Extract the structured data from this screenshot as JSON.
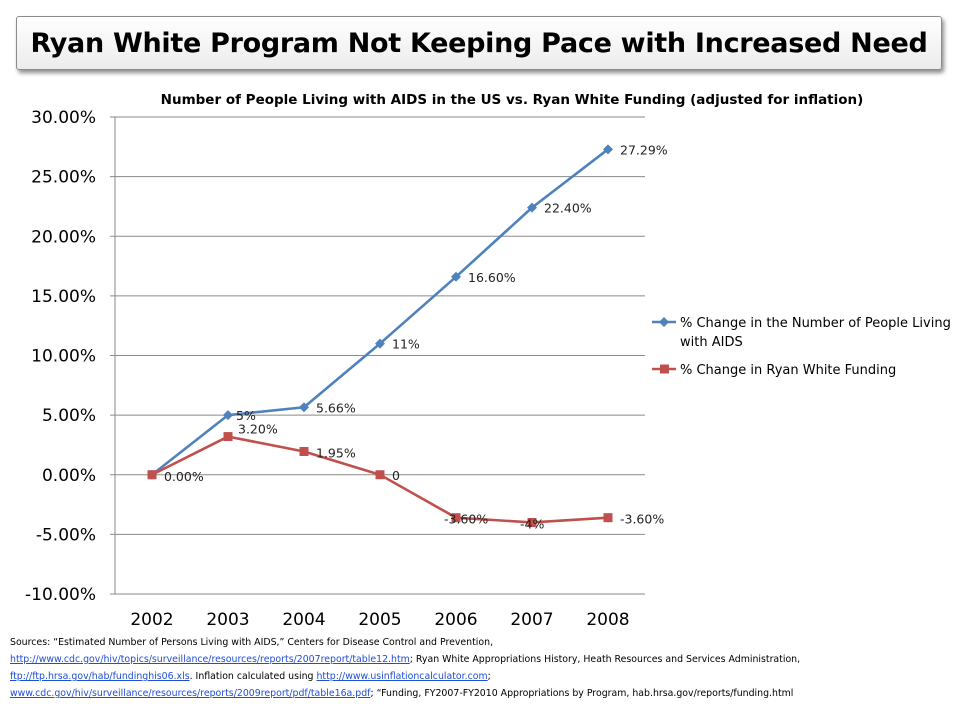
{
  "slide": {
    "title": "Ryan White Program Not Keeping Pace with Increased Need"
  },
  "chart_data": {
    "type": "line",
    "title": "Number of People Living with AIDS in the US vs. Ryan White Funding (adjusted for inflation)",
    "categories": [
      "2002",
      "2003",
      "2004",
      "2005",
      "2006",
      "2007",
      "2008"
    ],
    "ylim": [
      -10,
      30
    ],
    "yticks": [
      -10,
      -5,
      0,
      5,
      10,
      15,
      20,
      25,
      30
    ],
    "ytick_labels": [
      "-10.00%",
      "-5.00%",
      "0.00%",
      "5.00%",
      "10.00%",
      "15.00%",
      "20.00%",
      "25.00%",
      "30.00%"
    ],
    "grid": "horizontal",
    "legend": "right",
    "series": [
      {
        "name": "% Change in the Number of People Living with AIDS",
        "color": "#4f81bd",
        "marker": "diamond",
        "values": [
          0,
          5,
          5.66,
          11,
          16.6,
          22.4,
          27.29
        ],
        "labels": [
          "",
          "5%",
          "5.66%",
          "11%",
          "16.60%",
          "22.40%",
          "27.29%"
        ]
      },
      {
        "name": "% Change in Ryan White Funding",
        "color": "#c0504d",
        "marker": "square",
        "values": [
          0,
          3.2,
          1.95,
          0,
          -3.6,
          -4,
          -3.6
        ],
        "labels": [
          "0.00%",
          "3.20%",
          "1.95%",
          "0",
          "-3.60%",
          "-4%",
          "-3.60%"
        ]
      }
    ]
  },
  "sources": {
    "intro": "Sources: “Estimated  Number of Persons Living with AIDS,” Centers for Disease Control and Prevention,",
    "link1": "http://www.cdc.gov/hiv/topics/surveillance/resources/reports/2007report/table12.htm",
    "text2": "; Ryan White Appropriations History, Heath Resources and Services Administration,",
    "link2": "ftp://ftp.hrsa.gov/hab/fundinghis06.xls",
    "text3": ". Inflation calculated using ",
    "link3": "http://www.usinflationcalculator.com",
    "text4": ";",
    "link4": "www.cdc.gov/hiv/surveillance/resources/reports/2009report/pdf/table16a.pdf",
    "text5": "; “Funding, FY2007-FY2010 Appropriations by Program, hab.hrsa.gov/reports/funding.html"
  }
}
